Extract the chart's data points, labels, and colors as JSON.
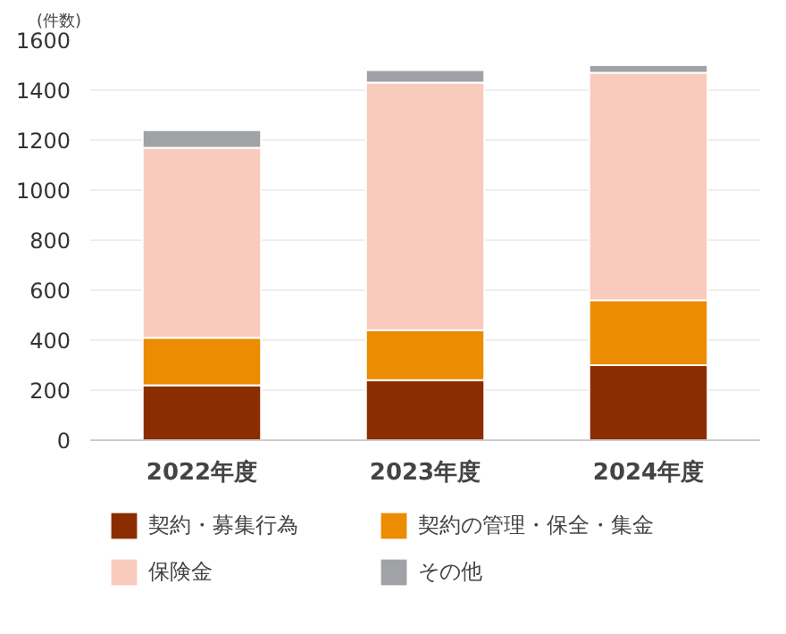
{
  "chart_data": {
    "type": "bar",
    "stacked": true,
    "ylabel": "(件数)",
    "categories": [
      "2022年度",
      "2023年度",
      "2024年度"
    ],
    "series": [
      {
        "name": "契約・募集行為",
        "color": "#8b2d00",
        "values": [
          220,
          240,
          300
        ]
      },
      {
        "name": "契約の管理・保全・集金",
        "color": "#ec8c00",
        "values": [
          190,
          200,
          260
        ]
      },
      {
        "name": "保険金",
        "color": "#f9cbbd",
        "values": [
          760,
          990,
          910
        ]
      },
      {
        "name": "その他",
        "color": "#a0a2a5",
        "values": [
          70,
          50,
          30
        ]
      }
    ],
    "ylim": [
      0,
      1600
    ],
    "yticks": [
      0,
      200,
      400,
      600,
      800,
      1000,
      1200,
      1400,
      1600
    ],
    "grid": "y",
    "legend": "bottom"
  }
}
